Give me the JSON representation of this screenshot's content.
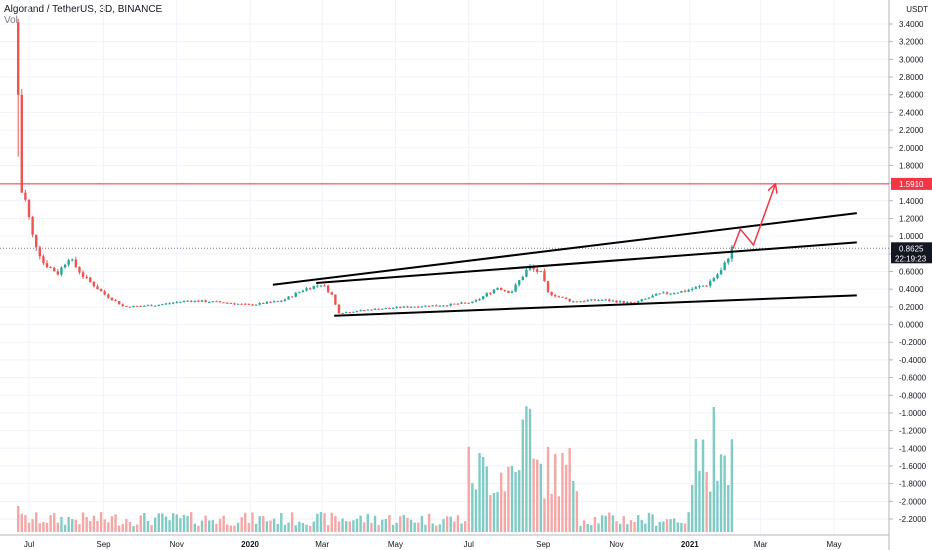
{
  "header": {
    "title": "Algorand / TetherUS, 3D, BINANCE",
    "volume_label": "Vol"
  },
  "currency": "USDT",
  "colors": {
    "up": "#26a69a",
    "down": "#ef5350",
    "vol_up": "#80cbc4",
    "vol_down": "#f4a7a6",
    "resistance": "#f23645",
    "projection": "#f23645",
    "trend": "#000000",
    "grid": "#f0f3fa",
    "axis_text": "#131722"
  },
  "chart_data": {
    "type": "candlestick",
    "title": "Algorand / TetherUS, 3D, BINANCE",
    "x_axis_labels": [
      "Jul",
      "Sep",
      "Nov",
      "2020",
      "Mar",
      "May",
      "Jul",
      "Sep",
      "Nov",
      "2021",
      "Mar",
      "May"
    ],
    "y_axis_ticks": [
      "3.4000",
      "3.2000",
      "3.0000",
      "2.8000",
      "2.6000",
      "2.4000",
      "2.2000",
      "2.0000",
      "1.8000",
      "1.6000",
      "1.4000",
      "1.2000",
      "1.0000",
      "0.8000",
      "0.6000",
      "0.4000",
      "0.2000",
      "0.0000",
      "-0.2000",
      "-0.4000",
      "-0.6000",
      "-0.8000",
      "-1.0000",
      "-1.2000",
      "-1.4000",
      "-1.6000",
      "-1.8000",
      "-2.0000",
      "-2.2000"
    ],
    "ylim": [
      -2.35,
      3.55
    ],
    "price_labels": {
      "resistance": "1.5910",
      "last_price": "0.8625",
      "countdown": "22:19:23"
    },
    "resistance_level": 1.591,
    "last_price": 0.8625,
    "series_anchors": [
      {
        "date": "2019-06-22",
        "close": 2.6
      },
      {
        "date": "2019-06-25",
        "close": 1.5
      },
      {
        "date": "2019-06-28",
        "close": 1.4
      },
      {
        "date": "2019-07-04",
        "close": 1.0
      },
      {
        "date": "2019-07-13",
        "close": 0.7
      },
      {
        "date": "2019-07-25",
        "close": 0.58
      },
      {
        "date": "2019-08-03",
        "close": 0.76
      },
      {
        "date": "2019-08-15",
        "close": 0.55
      },
      {
        "date": "2019-09-01",
        "close": 0.35
      },
      {
        "date": "2019-09-18",
        "close": 0.2
      },
      {
        "date": "2019-10-15",
        "close": 0.22
      },
      {
        "date": "2019-11-10",
        "close": 0.27
      },
      {
        "date": "2019-12-10",
        "close": 0.25
      },
      {
        "date": "2020-01-01",
        "close": 0.22
      },
      {
        "date": "2020-01-28",
        "close": 0.27
      },
      {
        "date": "2020-02-15",
        "close": 0.4
      },
      {
        "date": "2020-03-01",
        "close": 0.46
      },
      {
        "date": "2020-03-10",
        "close": 0.32
      },
      {
        "date": "2020-03-14",
        "close": 0.13
      },
      {
        "date": "2020-04-10",
        "close": 0.17
      },
      {
        "date": "2020-05-10",
        "close": 0.2
      },
      {
        "date": "2020-06-10",
        "close": 0.22
      },
      {
        "date": "2020-07-05",
        "close": 0.25
      },
      {
        "date": "2020-07-25",
        "close": 0.42
      },
      {
        "date": "2020-08-05",
        "close": 0.36
      },
      {
        "date": "2020-08-20",
        "close": 0.65
      },
      {
        "date": "2020-08-30",
        "close": 0.58
      },
      {
        "date": "2020-09-05",
        "close": 0.36
      },
      {
        "date": "2020-09-25",
        "close": 0.26
      },
      {
        "date": "2020-10-20",
        "close": 0.28
      },
      {
        "date": "2020-11-15",
        "close": 0.24
      },
      {
        "date": "2020-12-05",
        "close": 0.34
      },
      {
        "date": "2020-12-28",
        "close": 0.38
      },
      {
        "date": "2021-01-15",
        "close": 0.45
      },
      {
        "date": "2021-01-28",
        "close": 0.62
      },
      {
        "date": "2021-02-05",
        "close": 0.86
      }
    ],
    "trend_lines": [
      {
        "from": {
          "date": "2020-01-20",
          "price": 0.45
        },
        "to": {
          "date": "2021-05-20",
          "price": 1.26
        }
      },
      {
        "from": {
          "date": "2020-02-25",
          "price": 0.47
        },
        "to": {
          "date": "2021-05-20",
          "price": 0.93
        }
      },
      {
        "from": {
          "date": "2020-03-11",
          "price": 0.1
        },
        "to": {
          "date": "2021-05-20",
          "price": 0.33
        }
      }
    ],
    "projection_path": [
      {
        "date": "2021-02-06",
        "price": 0.86
      },
      {
        "date": "2021-02-12",
        "price": 1.08
      },
      {
        "date": "2021-02-23",
        "price": 0.9
      },
      {
        "date": "2021-03-13",
        "price": 1.58
      }
    ]
  }
}
